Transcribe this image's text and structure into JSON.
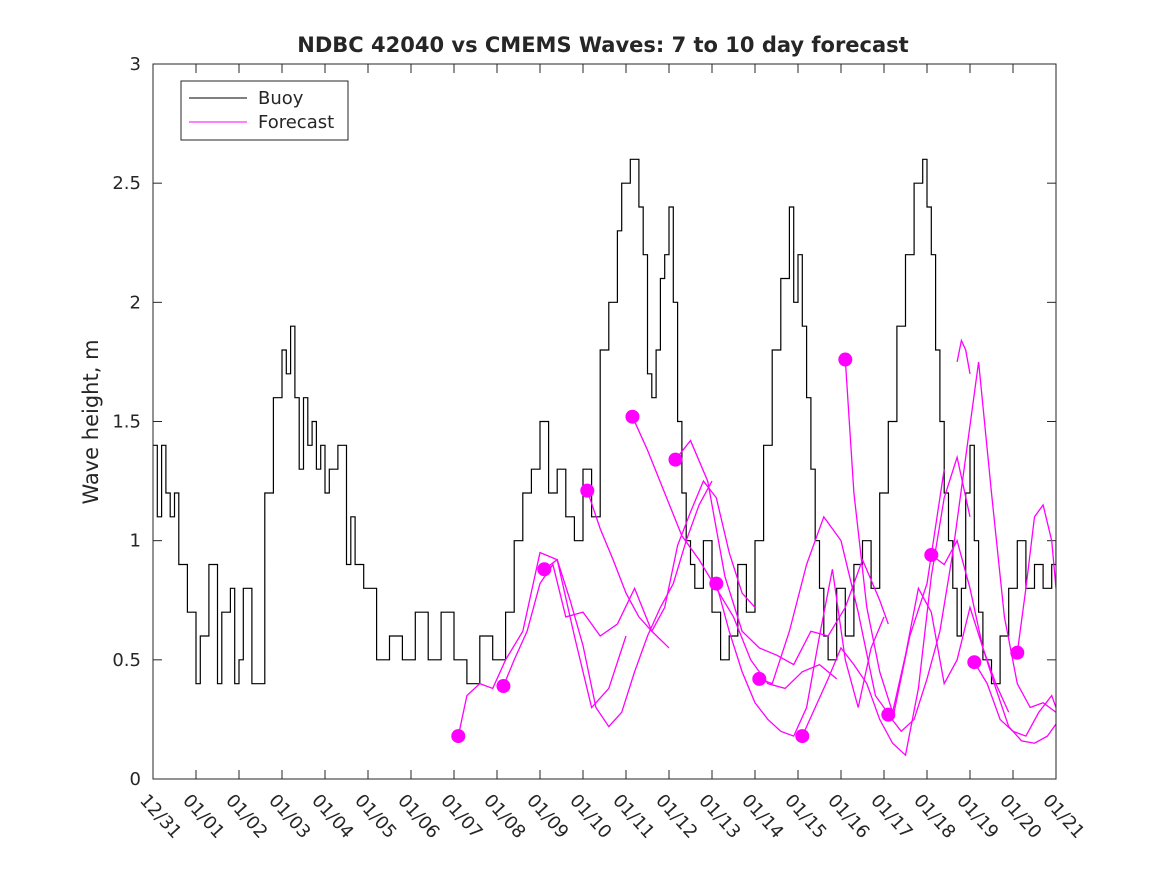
{
  "chart_data": {
    "type": "line",
    "title": "NDBC 42040 vs CMEMS Waves: 7 to 10 day forecast",
    "xlabel": "",
    "ylabel": "Wave height, m",
    "xlim": [
      0,
      21
    ],
    "ylim": [
      0,
      3
    ],
    "yticks": [
      0,
      0.5,
      1,
      1.5,
      2,
      2.5,
      3
    ],
    "ytick_labels": [
      "0",
      "0.5",
      "1",
      "1.5",
      "2",
      "2.5",
      "3"
    ],
    "xtick_labels": [
      "12/31",
      "01/01",
      "01/02",
      "01/03",
      "01/04",
      "01/05",
      "01/06",
      "01/07",
      "01/08",
      "01/09",
      "01/10",
      "01/11",
      "01/12",
      "01/13",
      "01/14",
      "01/15",
      "01/16",
      "01/17",
      "01/18",
      "01/19",
      "01/20",
      "01/21"
    ],
    "x_units": "days since 12/31",
    "legend": {
      "location": "top-left",
      "entries": [
        "Buoy",
        "Forecast"
      ]
    },
    "colors": {
      "buoy": "#000000",
      "forecast": "#ff00ff"
    },
    "series": [
      {
        "name": "Buoy",
        "x": [
          0.0,
          0.1,
          0.2,
          0.3,
          0.4,
          0.5,
          0.6,
          0.8,
          1.0,
          1.1,
          1.3,
          1.5,
          1.6,
          1.8,
          1.9,
          2.0,
          2.1,
          2.3,
          2.5,
          2.6,
          2.8,
          3.0,
          3.1,
          3.2,
          3.3,
          3.4,
          3.5,
          3.6,
          3.7,
          3.8,
          3.9,
          4.0,
          4.1,
          4.3,
          4.5,
          4.6,
          4.7,
          4.9,
          5.2,
          5.5,
          5.8,
          6.1,
          6.4,
          6.7,
          7.0,
          7.3,
          7.6,
          7.9,
          8.2,
          8.4,
          8.6,
          8.8,
          9.0,
          9.2,
          9.4,
          9.6,
          9.8,
          10.0,
          10.2,
          10.4,
          10.6,
          10.8,
          10.9,
          11.1,
          11.3,
          11.4,
          11.5,
          11.6,
          11.7,
          11.8,
          11.9,
          12.0,
          12.1,
          12.2,
          12.3,
          12.4,
          12.5,
          12.6,
          12.8,
          13.0,
          13.2,
          13.4,
          13.6,
          13.8,
          14.0,
          14.2,
          14.4,
          14.6,
          14.8,
          14.9,
          15.0,
          15.1,
          15.2,
          15.3,
          15.4,
          15.5,
          15.6,
          15.7,
          15.9,
          16.1,
          16.3,
          16.5,
          16.7,
          16.9,
          17.1,
          17.3,
          17.5,
          17.7,
          17.9,
          18.0,
          18.1,
          18.2,
          18.3,
          18.4,
          18.5,
          18.6,
          18.7,
          18.8,
          18.9,
          19.0,
          19.1,
          19.2,
          19.3,
          19.5,
          19.7,
          19.9,
          20.1,
          20.3,
          20.5,
          20.7,
          20.9,
          21.0
        ],
        "values": [
          1.4,
          1.1,
          1.4,
          1.2,
          1.1,
          1.2,
          0.9,
          0.7,
          0.4,
          0.6,
          0.9,
          0.4,
          0.7,
          0.8,
          0.4,
          0.5,
          0.8,
          0.4,
          0.4,
          1.2,
          1.6,
          1.8,
          1.7,
          1.9,
          1.6,
          1.3,
          1.6,
          1.4,
          1.5,
          1.3,
          1.4,
          1.2,
          1.3,
          1.4,
          0.9,
          1.1,
          0.9,
          0.8,
          0.5,
          0.6,
          0.5,
          0.7,
          0.5,
          0.7,
          0.5,
          0.4,
          0.6,
          0.5,
          0.7,
          1.0,
          1.2,
          1.3,
          1.5,
          1.2,
          1.3,
          1.1,
          1.0,
          1.3,
          1.1,
          1.8,
          2.0,
          2.3,
          2.5,
          2.6,
          2.4,
          2.2,
          1.7,
          1.6,
          1.8,
          2.1,
          2.2,
          2.4,
          2.0,
          1.5,
          1.2,
          1.0,
          0.9,
          0.8,
          1.0,
          0.7,
          0.5,
          0.6,
          0.9,
          0.7,
          1.0,
          1.4,
          1.8,
          2.1,
          2.4,
          2.0,
          2.2,
          1.9,
          1.6,
          1.3,
          1.0,
          0.8,
          0.6,
          0.5,
          0.8,
          0.6,
          0.9,
          1.0,
          0.8,
          1.2,
          1.5,
          1.9,
          2.2,
          2.5,
          2.6,
          2.4,
          2.2,
          1.8,
          1.5,
          1.2,
          1.0,
          0.8,
          0.6,
          0.8,
          1.2,
          1.4,
          1.0,
          0.7,
          0.5,
          0.4,
          0.6,
          0.8,
          1.0,
          0.8,
          0.9,
          0.8,
          0.9,
          1.0
        ]
      },
      {
        "name": "Forecast",
        "start_points": [
          {
            "x": 7.1,
            "y": 0.18
          },
          {
            "x": 8.15,
            "y": 0.39
          },
          {
            "x": 9.1,
            "y": 0.88
          },
          {
            "x": 10.1,
            "y": 1.21
          },
          {
            "x": 11.15,
            "y": 1.52
          },
          {
            "x": 12.15,
            "y": 1.34
          },
          {
            "x": 13.1,
            "y": 0.82
          },
          {
            "x": 14.1,
            "y": 0.42
          },
          {
            "x": 15.1,
            "y": 0.18
          },
          {
            "x": 16.1,
            "y": 1.76
          },
          {
            "x": 17.1,
            "y": 0.27
          },
          {
            "x": 18.1,
            "y": 0.94
          },
          {
            "x": 19.1,
            "y": 0.49
          },
          {
            "x": 20.1,
            "y": 0.53
          }
        ],
        "runs": [
          {
            "x": [
              7.1,
              7.3,
              7.6,
              7.9,
              8.2,
              8.6,
              9.0,
              9.4,
              9.8,
              10.2,
              10.6,
              11.0
            ],
            "values": [
              0.18,
              0.35,
              0.4,
              0.38,
              0.5,
              0.62,
              0.95,
              0.92,
              0.6,
              0.3,
              0.38,
              0.6
            ]
          },
          {
            "x": [
              8.15,
              8.4,
              8.7,
              9.0,
              9.3,
              9.6,
              10.0,
              10.4,
              10.8,
              11.2,
              11.6,
              12.0
            ],
            "values": [
              0.39,
              0.5,
              0.62,
              0.82,
              0.9,
              0.68,
              0.7,
              0.6,
              0.65,
              0.8,
              0.62,
              0.55
            ]
          },
          {
            "x": [
              9.1,
              9.4,
              9.7,
              10.0,
              10.3,
              10.6,
              10.9,
              11.2,
              11.5,
              11.8,
              12.1,
              12.4,
              12.7,
              13.0
            ],
            "values": [
              0.88,
              0.92,
              0.75,
              0.56,
              0.3,
              0.22,
              0.28,
              0.45,
              0.6,
              0.72,
              0.82,
              1.0,
              1.15,
              1.25
            ]
          },
          {
            "x": [
              10.1,
              10.4,
              10.7,
              11.0,
              11.3,
              11.6,
              11.9,
              12.2,
              12.5,
              12.8,
              13.1,
              13.4,
              13.7,
              14.0
            ],
            "values": [
              1.21,
              1.05,
              0.92,
              0.78,
              0.68,
              0.62,
              0.72,
              0.98,
              1.12,
              1.25,
              1.18,
              0.95,
              0.78,
              0.72
            ]
          },
          {
            "x": [
              11.15,
              11.5,
              11.9,
              12.3,
              12.7,
              13.1,
              13.5,
              13.9,
              14.3,
              14.7,
              15.1,
              15.5,
              15.9
            ],
            "values": [
              1.52,
              1.38,
              1.2,
              1.02,
              0.92,
              0.8,
              0.68,
              0.5,
              0.4,
              0.38,
              0.45,
              0.48,
              0.42
            ]
          },
          {
            "x": [
              12.15,
              12.5,
              12.9,
              13.3,
              13.7,
              14.1,
              14.5,
              14.9,
              15.3,
              15.7,
              16.1,
              16.5,
              16.9,
              17.1
            ],
            "values": [
              1.34,
              1.42,
              1.25,
              0.85,
              0.62,
              0.55,
              0.52,
              0.48,
              0.62,
              0.6,
              0.72,
              0.92,
              0.75,
              0.65
            ]
          },
          {
            "x": [
              13.1,
              13.4,
              13.7,
              14.0,
              14.3,
              14.6,
              14.9,
              15.2,
              15.5,
              15.8,
              16.1,
              16.4,
              16.7,
              17.0
            ],
            "values": [
              0.82,
              0.62,
              0.45,
              0.32,
              0.25,
              0.2,
              0.18,
              0.3,
              0.6,
              0.88,
              0.5,
              0.3,
              0.55,
              0.68
            ]
          },
          {
            "x": [
              14.1,
              14.4,
              14.8,
              15.2,
              15.6,
              16.0,
              16.4,
              16.8,
              17.2,
              17.6,
              18.0,
              18.4
            ],
            "values": [
              0.42,
              0.4,
              0.62,
              0.9,
              1.1,
              1.0,
              0.7,
              0.35,
              0.25,
              0.6,
              0.82,
              1.3
            ]
          },
          {
            "x": [
              15.1,
              15.4,
              15.7,
              16.0,
              16.3,
              16.6,
              16.9,
              17.2,
              17.5,
              17.8,
              18.1,
              18.4,
              18.7,
              19.0
            ],
            "values": [
              0.18,
              0.3,
              0.42,
              0.55,
              0.48,
              0.4,
              0.25,
              0.15,
              0.1,
              0.38,
              0.85,
              1.18,
              1.35,
              1.1
            ]
          },
          {
            "x": [
              16.1,
              16.3,
              16.6,
              16.9,
              17.2,
              17.5,
              17.8,
              18.1,
              18.4,
              18.7,
              19.0,
              19.3,
              19.6,
              19.9
            ],
            "values": [
              1.76,
              1.2,
              0.72,
              0.45,
              0.28,
              0.52,
              0.8,
              0.7,
              0.4,
              0.5,
              0.72,
              0.55,
              0.4,
              0.28
            ]
          },
          {
            "x": [
              17.1,
              17.4,
              17.7,
              18.0,
              18.3,
              18.6,
              18.9,
              19.2,
              19.5,
              19.8,
              20.1,
              20.4,
              20.7,
              21.0
            ],
            "values": [
              0.27,
              0.2,
              0.25,
              0.42,
              0.62,
              0.95,
              1.35,
              1.75,
              1.2,
              0.68,
              0.4,
              0.3,
              0.32,
              0.28
            ]
          },
          {
            "x": [
              18.1,
              18.4,
              18.7,
              19.0,
              19.3,
              19.6,
              19.9,
              20.2,
              20.5,
              20.8,
              21.0
            ],
            "values": [
              0.94,
              0.9,
              1.0,
              0.8,
              0.55,
              0.38,
              0.22,
              0.16,
              0.15,
              0.18,
              0.23
            ]
          },
          {
            "x": [
              18.7,
              18.8,
              18.9,
              19.0
            ],
            "values": [
              1.75,
              1.84,
              1.8,
              1.7
            ]
          },
          {
            "x": [
              19.1,
              19.4,
              19.7,
              20.0,
              20.3,
              20.6,
              20.9,
              21.0
            ],
            "values": [
              0.49,
              0.4,
              0.25,
              0.2,
              0.18,
              0.28,
              0.35,
              0.3
            ]
          },
          {
            "x": [
              20.1,
              20.3,
              20.5,
              20.7,
              20.9,
              21.0
            ],
            "values": [
              0.53,
              0.8,
              1.1,
              1.15,
              1.0,
              0.8
            ]
          }
        ]
      }
    ]
  }
}
